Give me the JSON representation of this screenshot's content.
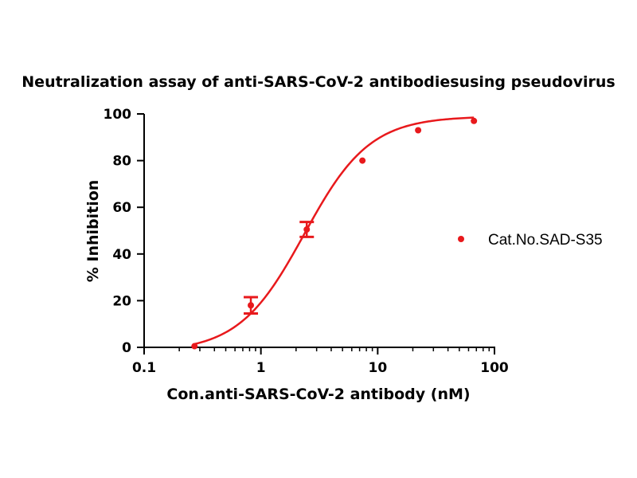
{
  "chart_data": {
    "type": "scatter",
    "title": "Neutralization assay of anti-SARS-CoV-2 antibodiesusing pseudovirus",
    "xlabel": "Con.anti-SARS-CoV-2 antibody (nM)",
    "ylabel": "% Inhibition",
    "x_scale": "log",
    "xlim": [
      0.1,
      100
    ],
    "ylim": [
      0,
      100
    ],
    "x_ticks": [
      0.1,
      1,
      10,
      100
    ],
    "x_tick_labels": [
      "0.1",
      "1",
      "10",
      "100"
    ],
    "y_ticks": [
      0,
      20,
      40,
      60,
      80,
      100
    ],
    "y_tick_labels": [
      "0",
      "20",
      "40",
      "60",
      "80",
      "100"
    ],
    "grid": false,
    "legend_position": "right",
    "color": "#e8191c",
    "series": [
      {
        "name": "Cat.No.SAD-S35",
        "x": [
          0.27,
          0.82,
          2.47,
          7.4,
          22.2,
          66.7
        ],
        "y": [
          0.5,
          18,
          50.5,
          80,
          93,
          97
        ],
        "error": [
          0,
          3.5,
          3.2,
          0,
          0,
          0
        ]
      }
    ],
    "fit": {
      "type": "four-parameter logistic",
      "bottom": -2,
      "top": 99,
      "ec50": 2.35,
      "hill": 1.55
    }
  }
}
